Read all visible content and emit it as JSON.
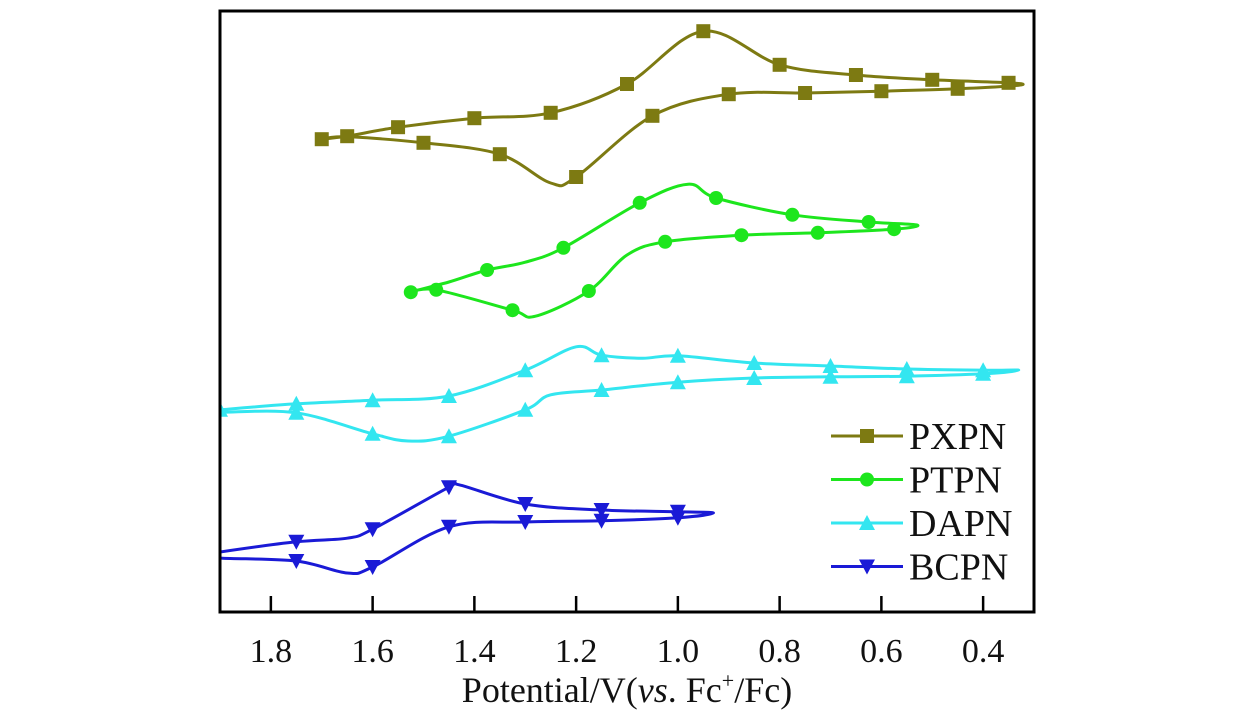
{
  "chart_data": {
    "type": "line",
    "title": "",
    "xlabel_parts": {
      "pre": "Potential/V(",
      "italic": "vs",
      "mid": ". Fc",
      "sup": "+",
      "post": "/Fc)"
    },
    "xlabel": "Potential/V(vs. Fc+/Fc)",
    "ylabel": "",
    "xlim": [
      1.9,
      0.3
    ],
    "ylim": [
      0,
      100
    ],
    "y_units": "arbitrary current",
    "x_ticks": [
      1.8,
      1.6,
      1.4,
      1.2,
      1.0,
      0.8,
      0.6,
      0.4
    ],
    "x_tick_labels": [
      "1.8",
      "1.6",
      "1.4",
      "1.2",
      "1.0",
      "0.8",
      "0.6",
      "0.4"
    ],
    "grid": false,
    "legend_position": "bottom-right",
    "series": [
      {
        "name": "PXPN",
        "color": "#7d7a12",
        "marker": "square",
        "points": [
          [
            1.7,
            78.8,
            1
          ],
          [
            1.65,
            79.3,
            1
          ],
          [
            1.55,
            80.8,
            1
          ],
          [
            1.4,
            82.3,
            1
          ],
          [
            1.25,
            83.2,
            1
          ],
          [
            1.1,
            88,
            1
          ],
          [
            0.95,
            96.8,
            1
          ],
          [
            0.8,
            91.2,
            1
          ],
          [
            0.65,
            89.5,
            1
          ],
          [
            0.5,
            88.7,
            1
          ],
          [
            0.35,
            88.2,
            1
          ],
          [
            0.33,
            87.8,
            0
          ],
          [
            0.45,
            87.2,
            1
          ],
          [
            0.6,
            86.8,
            1
          ],
          [
            0.75,
            86.5,
            1
          ],
          [
            0.9,
            86.3,
            1
          ],
          [
            1.05,
            82.7,
            1
          ],
          [
            1.2,
            72.5,
            1
          ],
          [
            1.25,
            71.5,
            0
          ],
          [
            1.35,
            76.3,
            1
          ],
          [
            1.5,
            78.2,
            1
          ],
          [
            1.65,
            79.2,
            0
          ]
        ]
      },
      {
        "name": "PTPN",
        "color": "#1de61d",
        "marker": "circle",
        "points": [
          [
            1.525,
            53.3,
            1
          ],
          [
            1.45,
            55,
            0
          ],
          [
            1.375,
            57,
            1
          ],
          [
            1.3,
            58.3,
            0
          ],
          [
            1.225,
            60.7,
            1
          ],
          [
            1.075,
            68.2,
            1
          ],
          [
            0.98,
            71.3,
            0
          ],
          [
            0.925,
            69,
            1
          ],
          [
            0.775,
            66.2,
            1
          ],
          [
            0.625,
            65,
            1
          ],
          [
            0.53,
            64.5,
            0
          ],
          [
            0.575,
            63.8,
            1
          ],
          [
            0.725,
            63.2,
            1
          ],
          [
            0.875,
            62.8,
            1
          ],
          [
            1.025,
            61.7,
            1
          ],
          [
            1.1,
            59.5,
            0
          ],
          [
            1.175,
            53.5,
            1
          ],
          [
            1.28,
            49.3,
            0
          ],
          [
            1.325,
            50.3,
            1
          ],
          [
            1.475,
            53.7,
            1
          ]
        ]
      },
      {
        "name": "DAPN",
        "color": "#33e6f0",
        "marker": "triangle-up",
        "points": [
          [
            1.92,
            33.5,
            0
          ],
          [
            1.9,
            33.7,
            1
          ],
          [
            1.75,
            34.7,
            1
          ],
          [
            1.6,
            35.3,
            1
          ],
          [
            1.45,
            36,
            1
          ],
          [
            1.3,
            40.3,
            1
          ],
          [
            1.2,
            44.2,
            0
          ],
          [
            1.15,
            42.8,
            1
          ],
          [
            1.07,
            42.3,
            0
          ],
          [
            1.0,
            42.7,
            1
          ],
          [
            0.85,
            41.5,
            1
          ],
          [
            0.7,
            41,
            1
          ],
          [
            0.55,
            40.5,
            1
          ],
          [
            0.4,
            40.3,
            1
          ],
          [
            0.33,
            40.3,
            0
          ],
          [
            0.4,
            39.7,
            1
          ],
          [
            0.55,
            39.3,
            1
          ],
          [
            0.7,
            39.2,
            1
          ],
          [
            0.85,
            39,
            1
          ],
          [
            1.0,
            38.3,
            1
          ],
          [
            1.15,
            37,
            1
          ],
          [
            1.25,
            36.2,
            0
          ],
          [
            1.3,
            33.7,
            1
          ],
          [
            1.45,
            29.3,
            1
          ],
          [
            1.53,
            28.5,
            0
          ],
          [
            1.6,
            29.7,
            1
          ],
          [
            1.75,
            33.2,
            1
          ],
          [
            1.9,
            33.3,
            0
          ]
        ]
      },
      {
        "name": "BCPN",
        "color": "#1a1ad6",
        "marker": "triangle-down",
        "points": [
          [
            1.92,
            9.6,
            0
          ],
          [
            1.9,
            10,
            0
          ],
          [
            1.75,
            11.7,
            1
          ],
          [
            1.65,
            12.3,
            0
          ],
          [
            1.6,
            13.8,
            1
          ],
          [
            1.45,
            20.8,
            1
          ],
          [
            1.43,
            21.2,
            0
          ],
          [
            1.3,
            18,
            1
          ],
          [
            1.15,
            17,
            1
          ],
          [
            1.0,
            16.7,
            1
          ],
          [
            0.93,
            16.5,
            0
          ],
          [
            1.0,
            15.7,
            1
          ],
          [
            1.15,
            15.2,
            1
          ],
          [
            1.3,
            15,
            1
          ],
          [
            1.45,
            14.2,
            1
          ],
          [
            1.6,
            7.5,
            1
          ],
          [
            1.65,
            6.5,
            0
          ],
          [
            1.75,
            8.5,
            1
          ],
          [
            1.9,
            9,
            0
          ]
        ]
      }
    ]
  }
}
